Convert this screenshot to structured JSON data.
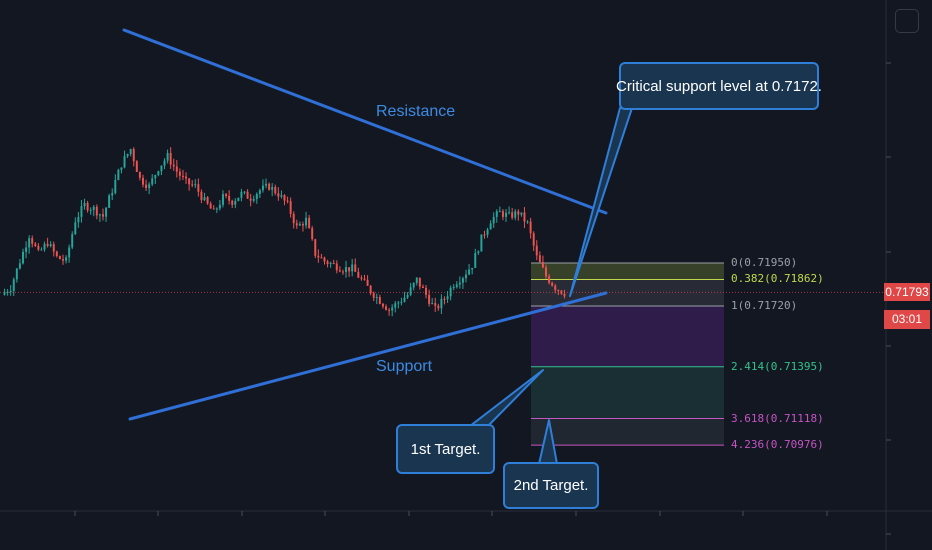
{
  "colors": {
    "background": "#131722",
    "up_candle": "#26a69a",
    "down_candle": "#ef5350",
    "trendline": "#2f6fd6",
    "annotation_fill": "#1a3550",
    "annotation_border": "#2f7ed8",
    "price_tag": "#e04848"
  },
  "annotations": {
    "resistance_label": "Resistance",
    "support_label": "Support",
    "critical_callout": "Critical support level at 0.7172.",
    "target1_callout": "1st Target.",
    "target2_callout": "2nd Target."
  },
  "price_axis": {
    "last_price": "0.71793",
    "countdown": "03:01"
  },
  "toolbar": {
    "corner_button_icon": "square-button-icon"
  },
  "chart_data": {
    "type": "candlestick",
    "symbol_note": "",
    "ylim": [
      0.7083,
      0.7264
    ],
    "last_price": 0.71793,
    "fib_levels": [
      {
        "ratio": "0",
        "price": 0.7195,
        "label": "0(0.71950)",
        "color": "#9aa0a6"
      },
      {
        "ratio": "0.382",
        "price": 0.71862,
        "label": "0.382(0.71862)",
        "color": "#c0d84a"
      },
      {
        "ratio": "1",
        "price": 0.7172,
        "label": "1(0.71720)",
        "color": "#9aa0a6"
      },
      {
        "ratio": "2.414",
        "price": 0.71395,
        "label": "2.414(0.71395)",
        "color": "#33c28a"
      },
      {
        "ratio": "3.618",
        "price": 0.71118,
        "label": "3.618(0.71118)",
        "color": "#c455c4"
      },
      {
        "ratio": "4.236",
        "price": 0.70976,
        "label": "4.236(0.70976)",
        "color": "#c455c4"
      }
    ],
    "trendlines": [
      {
        "name": "Resistance",
        "from": [
          0.7257
        ],
        "to": [
          0.72
        ]
      },
      {
        "name": "Support",
        "from": [
          0.7093
        ],
        "to": [
          0.718
        ]
      }
    ],
    "price_path": [
      0.7178,
      0.7182,
      0.7196,
      0.721,
      0.72,
      0.7206,
      0.7198,
      0.7196,
      0.7218,
      0.7226,
      0.7224,
      0.722,
      0.7234,
      0.7248,
      0.7256,
      0.724,
      0.7236,
      0.7246,
      0.7252,
      0.7244,
      0.7238,
      0.7236,
      0.7228,
      0.7222,
      0.723,
      0.7228,
      0.7232,
      0.723,
      0.7234,
      0.7236,
      0.7232,
      0.7226,
      0.7214,
      0.7218,
      0.72,
      0.7196,
      0.7194,
      0.7192,
      0.7192,
      0.7186,
      0.718,
      0.7175,
      0.717,
      0.7174,
      0.7178,
      0.7186,
      0.7178,
      0.717,
      0.7176,
      0.7184,
      0.7188,
      0.7194,
      0.7208,
      0.7218,
      0.7222,
      0.722,
      0.7222,
      0.7216,
      0.7198,
      0.7188,
      0.7182,
      0.7179
    ]
  }
}
